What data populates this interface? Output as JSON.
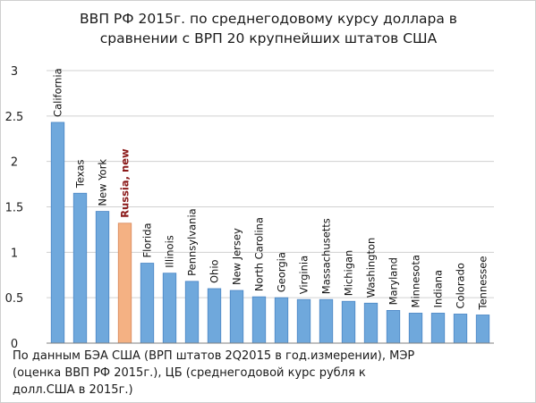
{
  "chart_data": {
    "type": "bar",
    "title": "ВВП РФ 2015г. по среднегодовому курсу доллара в сравнении с ВРП 20 крупнейших штатов США",
    "title_lines": [
      "ВВП РФ 2015г. по среднегодовому курсу доллара в",
      "сравнении с ВРП 20 крупнейших штатов США"
    ],
    "xlabel": "",
    "ylabel": "",
    "ylim": [
      0,
      3
    ],
    "yticks": [
      0,
      0.5,
      1,
      1.5,
      2,
      2.5,
      3
    ],
    "ytick_labels": [
      "0",
      "0.5",
      "1",
      "1.5",
      "2",
      "2.5",
      "3"
    ],
    "grid": true,
    "categories": [
      "California",
      "Texas",
      "New York",
      "Russia, new",
      "Florida",
      "Illinois",
      "Pennsylvania",
      "Ohio",
      "New Jersey",
      "North Carolina",
      "Georgia",
      "Virginia",
      "Massachusetts",
      "Michigan",
      "Washington",
      "Maryland",
      "Minnesota",
      "Indiana",
      "Colorado",
      "Tennessee"
    ],
    "values": [
      2.43,
      1.65,
      1.45,
      1.32,
      0.88,
      0.77,
      0.68,
      0.6,
      0.58,
      0.51,
      0.5,
      0.48,
      0.48,
      0.46,
      0.44,
      0.36,
      0.33,
      0.33,
      0.32,
      0.31
    ],
    "highlight_index": 3,
    "colors": {
      "bar": "#6fa8dc",
      "bar_edge": "#4a86c5",
      "highlight": "#f4b183",
      "highlight_edge": "#d9885a",
      "highlight_label": "#8b1a1a",
      "grid": "#d0d0d0",
      "axis": "#7f7f7f"
    }
  },
  "source_note": {
    "lines": [
      "По данным БЭА США (ВРП штатов 2Q2015 в год.измерении),  МЭР",
      "(оценка ВВП РФ 2015г.), ЦБ (среднегодовой курс рубля к",
      "долл.США в 2015г.)"
    ]
  }
}
